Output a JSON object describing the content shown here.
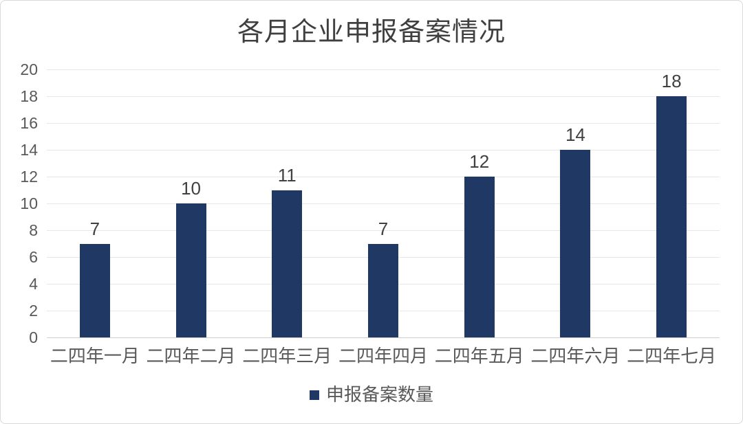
{
  "chart_data": {
    "type": "bar",
    "title": "各月企业申报备案情况",
    "categories": [
      "二四年一月",
      "二四年二月",
      "二四年三月",
      "二四年四月",
      "二四年五月",
      "二四年六月",
      "二四年七月"
    ],
    "series": [
      {
        "name": "申报备案数量",
        "values": [
          7,
          10,
          11,
          7,
          12,
          14,
          18
        ]
      }
    ],
    "data_labels": [
      7,
      10,
      11,
      7,
      12,
      14,
      18
    ],
    "xlabel": "",
    "ylabel": "",
    "ylim": [
      0,
      20
    ],
    "ytick_step": 2,
    "yticks": [
      0,
      2,
      4,
      6,
      8,
      10,
      12,
      14,
      16,
      18,
      20
    ],
    "grid": true,
    "legend_position": "bottom"
  },
  "colors": {
    "bar": "#1f3864",
    "title_text": "#3f3f3f",
    "axis_text": "#595959",
    "value_label_text": "#404040",
    "gridline": "#e7e7e7",
    "baseline": "#cfcfcf",
    "frame_border": "#d9d9d9",
    "background": "#ffffff"
  }
}
